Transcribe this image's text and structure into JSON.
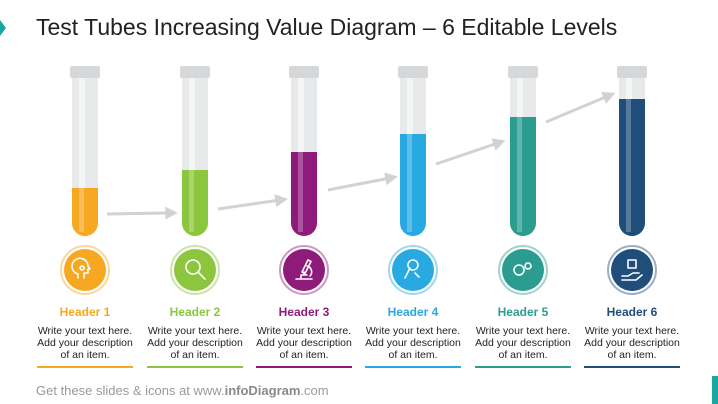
{
  "title": "Test Tubes Increasing Value Diagram – 6 Editable Levels",
  "items": [
    {
      "header": "Header 1",
      "description": "Write your text here. Add your description of an item."
    },
    {
      "header": "Header 2",
      "description": "Write your text here. Add your description of an item."
    },
    {
      "header": "Header 3",
      "description": "Write your text here. Add your description of an item."
    },
    {
      "header": "Header 4",
      "description": "Write your text here. Add your description of an item."
    },
    {
      "header": "Header 5",
      "description": "Write your text here. Add your description of an item."
    },
    {
      "header": "Header 6",
      "description": "Write your text here. Add your description of an item."
    }
  ],
  "footer": {
    "lead": "Get these slides & icons at www.",
    "brand": "infoDiagram",
    "tail": ".com"
  }
}
